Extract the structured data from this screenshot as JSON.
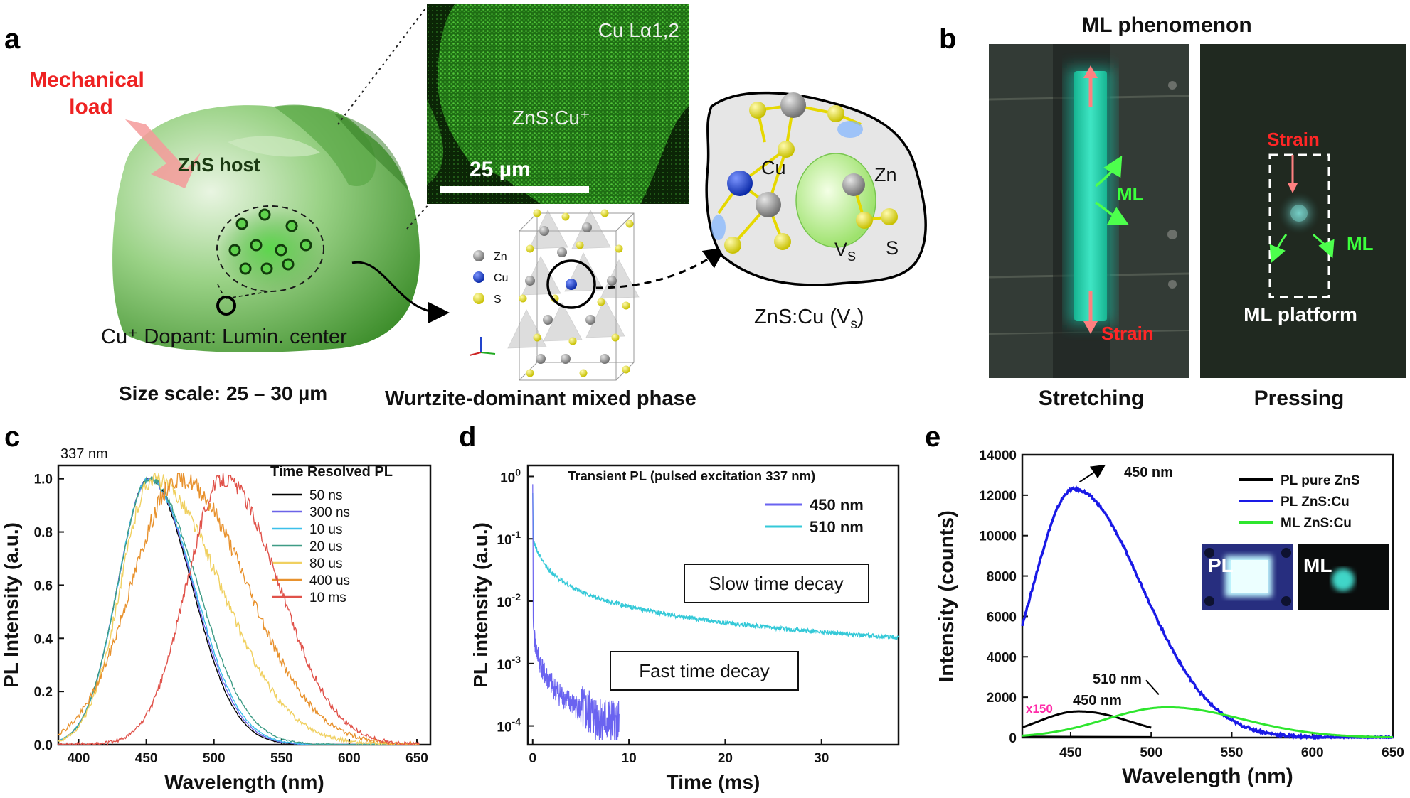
{
  "panels": {
    "a": {
      "letter": "a",
      "mech_load": [
        "Mechanical",
        "load"
      ],
      "host_label": "ZnS host",
      "dopant_label": "Cu⁺ Dopant: Lumin. center",
      "size_scale": "Size scale: 25 – 30 µm",
      "sem_title": "Cu Lα1,2",
      "sem_label": "ZnS:Cu⁺",
      "scale_bar": "25 µm",
      "legend": [
        "Zn",
        "Cu",
        "S"
      ],
      "phase_label": "Wurtzite-dominant mixed phase",
      "defect_labels": {
        "cu": "Cu",
        "zn": "Zn",
        "vs_main": "V",
        "vs_sub": "S",
        "s": "S"
      },
      "defect_title": "ZnS:Cu (V",
      "defect_title_sub": "s",
      "defect_title_end": ")",
      "colors": {
        "zn": "#8e8e8e",
        "cu": "#1a3fcf",
        "s": "#e8e000",
        "green": "#4aa83a"
      }
    },
    "b": {
      "letter": "b",
      "title": "ML phenomenon",
      "left": {
        "strain_label": "Strain",
        "ml_label": "ML",
        "caption": "Stretching"
      },
      "right": {
        "strain_label": "Strain",
        "ml_label": "ML",
        "platform": "ML platform",
        "caption": "Pressing"
      },
      "colors": {
        "glow": "#2fd5b0",
        "strain": "#ff2020",
        "ml": "#3cff3c"
      }
    },
    "c": {
      "letter": "c",
      "corner_label": "337 nm",
      "legend_title": "Time Resolved PL"
    },
    "d": {
      "letter": "d",
      "inner_title": "Transient PL (pulsed excitation 337 nm)",
      "box_slow": "Slow time decay",
      "box_fast": "Fast time decay"
    },
    "e": {
      "letter": "e",
      "inset_pl": "PL",
      "inset_ml": "ML",
      "scale_note": "x150"
    }
  },
  "chart_data": [
    {
      "id": "c",
      "type": "line",
      "xlabel": "Wavelength (nm)",
      "ylabel": "PL Intensity (a.u.)",
      "xlim": [
        385,
        660
      ],
      "ylim": [
        0,
        1.05
      ],
      "xticks": [
        "400",
        "450",
        "500",
        "550",
        "600",
        "650"
      ],
      "yticks": [
        "0.0",
        "0.2",
        "0.4",
        "0.6",
        "0.8",
        "1.0"
      ],
      "series": [
        {
          "name": "50 ns",
          "color": "#000000",
          "peak": 452,
          "wl": 27,
          "wr": 37,
          "noise": 0.006
        },
        {
          "name": "300 ns",
          "color": "#6b63e8",
          "peak": 452,
          "wl": 27,
          "wr": 38,
          "noise": 0.008
        },
        {
          "name": "10 us",
          "color": "#3cc0ea",
          "peak": 452,
          "wl": 27,
          "wr": 39,
          "noise": 0.01
        },
        {
          "name": "20 us",
          "color": "#3f9c86",
          "peak": 452,
          "wl": 27,
          "wr": 42,
          "noise": 0.012
        },
        {
          "name": "80 us",
          "color": "#f0d060",
          "peak": 455,
          "wl": 28,
          "wr": 58,
          "noise": 0.03
        },
        {
          "name": "400 us",
          "color": "#e8922e",
          "peak": 475,
          "wl": 42,
          "wr": 58,
          "noise": 0.035
        },
        {
          "name": "10 ms",
          "color": "#e0524a",
          "peak": 507,
          "wl": 32,
          "wr": 48,
          "noise": 0.03
        }
      ]
    },
    {
      "id": "d",
      "type": "line",
      "xlabel": "Time (ms)",
      "ylabel": "PL intensity (a.u.)",
      "xlim": [
        -0.5,
        38
      ],
      "ylog": true,
      "ylim": [
        5e-05,
        1.5
      ],
      "xticks": [
        "0",
        "10",
        "20",
        "30"
      ],
      "yticks": [
        {
          "base": "10",
          "exp": "0",
          "value": 1
        },
        {
          "base": "10",
          "exp": "-1",
          "value": 0.1
        },
        {
          "base": "10",
          "exp": "-2",
          "value": 0.01
        },
        {
          "base": "10",
          "exp": "-3",
          "value": 0.001
        },
        {
          "base": "10",
          "exp": "-4",
          "value": 0.0001
        }
      ],
      "series": [
        {
          "name": "450 nm",
          "color": "#6a63f0",
          "tmax": 9
        },
        {
          "name": "510 nm",
          "color": "#35c9d8",
          "tmax": 38
        }
      ]
    },
    {
      "id": "e",
      "type": "line",
      "xlabel": "Wavelength (nm)",
      "ylabel": "Intensity (counts)",
      "xlim": [
        420,
        650
      ],
      "ylim": [
        0,
        14000
      ],
      "xticks": [
        "450",
        "500",
        "550",
        "600",
        "650"
      ],
      "yticks": [
        "0",
        "2000",
        "4000",
        "6000",
        "8000",
        "10000",
        "12000",
        "14000"
      ],
      "series": [
        {
          "name": "PL pure ZnS",
          "color": "#000000",
          "peak": 455,
          "amp": 1300,
          "wl": 30,
          "wr": 38,
          "xmax": 500
        },
        {
          "name": "PL ZnS:Cu",
          "color": "#1a1ae6",
          "peak": 452,
          "amp": 12300,
          "wl": 30,
          "wr": 50,
          "xmax": 650
        },
        {
          "name": "ML ZnS:Cu",
          "color": "#2ee62e",
          "peak": 510,
          "amp": 1500,
          "wl": 45,
          "wr": 55,
          "xmax": 650
        }
      ],
      "annotations": [
        {
          "text": "450 nm",
          "x": 452,
          "y": 12300
        },
        {
          "text": "510 nm",
          "x": 510,
          "y": 1500
        },
        {
          "text": "450 nm",
          "x": 455,
          "y": 1300
        }
      ]
    }
  ]
}
